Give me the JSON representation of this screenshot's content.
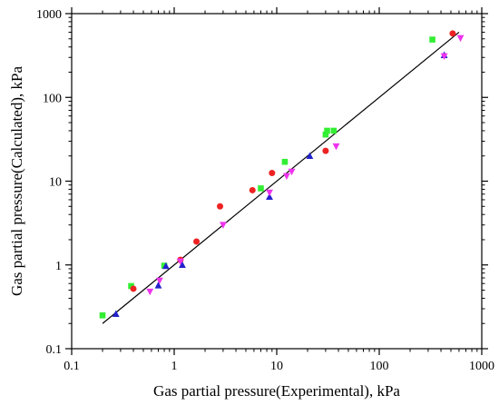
{
  "chart_data": {
    "type": "scatter",
    "title": "",
    "xlabel": "Gas partial pressure(Experimental), kPa",
    "ylabel": "Gas partial pressure(Calculated), kPa",
    "xscale": "log",
    "yscale": "log",
    "xlim": [
      0.1,
      1000
    ],
    "ylim": [
      0.1,
      1000
    ],
    "x_ticks": [
      0.1,
      1,
      10,
      100,
      1000
    ],
    "y_ticks": [
      0.1,
      1,
      10,
      100,
      1000
    ],
    "x_tick_labels": [
      "0.1",
      "1",
      "10",
      "100",
      "1000"
    ],
    "y_tick_labels": [
      "0.1",
      "1",
      "10",
      "100",
      "1000"
    ],
    "grid": false,
    "legend": "none",
    "fit_line": {
      "type": "y=x",
      "from": 0.2,
      "to": 600,
      "color": "#000000"
    },
    "series": [
      {
        "marker": "square",
        "color": "#33ee33",
        "points": [
          [
            0.2,
            0.25
          ],
          [
            0.38,
            0.56
          ],
          [
            0.8,
            0.98
          ],
          [
            7,
            8.2
          ],
          [
            12,
            17
          ],
          [
            30,
            36
          ],
          [
            31,
            40
          ],
          [
            36,
            40
          ],
          [
            330,
            490
          ]
        ]
      },
      {
        "marker": "circle",
        "color": "#ee2222",
        "points": [
          [
            0.4,
            0.52
          ],
          [
            1.15,
            1.15
          ],
          [
            1.65,
            1.9
          ],
          [
            2.8,
            5
          ],
          [
            5.8,
            7.8
          ],
          [
            9,
            12.5
          ],
          [
            30,
            23
          ],
          [
            520,
            580
          ]
        ]
      },
      {
        "marker": "triangle-up",
        "color": "#2222cc",
        "points": [
          [
            0.27,
            0.26
          ],
          [
            0.7,
            0.57
          ],
          [
            0.83,
            0.97
          ],
          [
            1.2,
            1
          ],
          [
            8.5,
            6.5
          ],
          [
            21,
            20
          ],
          [
            430,
            320
          ]
        ]
      },
      {
        "marker": "triangle-down",
        "color": "#ee33ee",
        "points": [
          [
            0.58,
            0.48
          ],
          [
            0.72,
            0.65
          ],
          [
            1.15,
            1.1
          ],
          [
            3,
            3
          ],
          [
            8.5,
            7.3
          ],
          [
            12.5,
            11.5
          ],
          [
            14,
            13
          ],
          [
            38,
            26
          ],
          [
            430,
            310
          ],
          [
            620,
            510
          ]
        ]
      }
    ]
  }
}
